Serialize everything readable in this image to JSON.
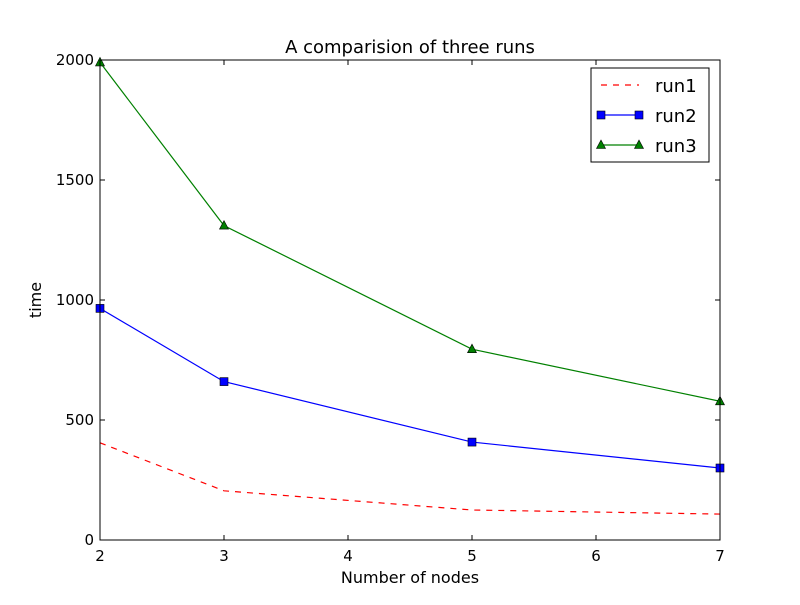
{
  "chart_data": {
    "type": "line",
    "title": "A comparision of three runs",
    "xlabel": "Number of nodes",
    "ylabel": "time",
    "xlim": [
      2,
      7
    ],
    "ylim": [
      0,
      2000
    ],
    "x": [
      2,
      3,
      5,
      7
    ],
    "x_ticks": [
      2,
      3,
      4,
      5,
      6,
      7
    ],
    "y_ticks": [
      0,
      500,
      1000,
      1500,
      2000
    ],
    "grid": false,
    "legend_position": "upper right",
    "series": [
      {
        "name": "run1",
        "values": [
          405,
          205,
          125,
          108
        ],
        "color": "#ff0000",
        "line_style": "dashed",
        "marker": "none"
      },
      {
        "name": "run2",
        "values": [
          965,
          660,
          408,
          300
        ],
        "color": "#0000ff",
        "line_style": "solid",
        "marker": "square"
      },
      {
        "name": "run3",
        "values": [
          1990,
          1310,
          795,
          578
        ],
        "color": "#008000",
        "line_style": "solid",
        "marker": "triangle"
      }
    ]
  }
}
